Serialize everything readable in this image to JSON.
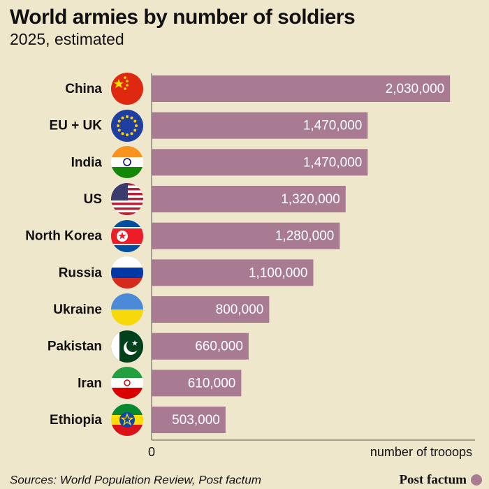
{
  "chart_data": {
    "type": "bar",
    "orientation": "horizontal",
    "title": "World armies by number of soldiers",
    "subtitle": "2025, estimated",
    "categories": [
      "China",
      "EU + UK",
      "India",
      "US",
      "North Korea",
      "Russia",
      "Ukraine",
      "Pakistan",
      "Iran",
      "Ethiopia"
    ],
    "values": [
      2030000,
      1470000,
      1470000,
      1320000,
      1280000,
      1100000,
      800000,
      660000,
      610000,
      503000
    ],
    "value_labels": [
      "2,030,000",
      "1,470,000",
      "1,470,000",
      "1,320,000",
      "1,280,000",
      "1,100,000",
      "800,000",
      "660,000",
      "610,000",
      "503,000"
    ],
    "color": "#a87b93",
    "xlim": [
      0,
      2200000
    ],
    "xticks": [
      0
    ],
    "x_label": "number of trooops",
    "source": "Sources: World Population Review, Post factum",
    "brand": "Post factum"
  }
}
